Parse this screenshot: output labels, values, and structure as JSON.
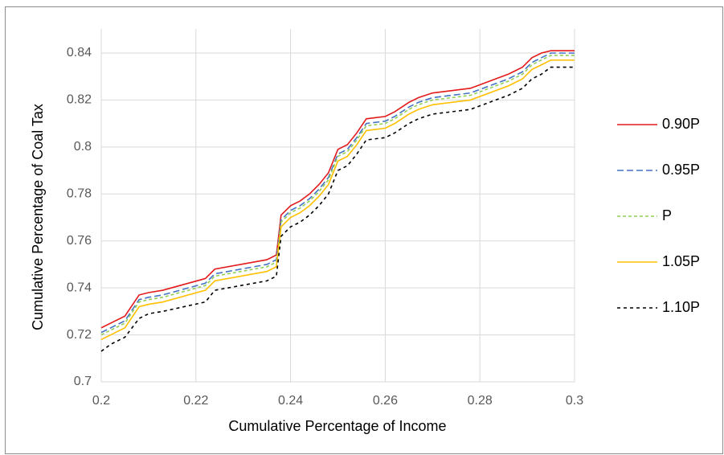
{
  "chart_data": {
    "type": "line",
    "x_label": "Cumulative Percentage of Income",
    "y_label": "Cumulative Percentage of Coal Tax",
    "x": [
      0.2,
      0.202,
      0.205,
      0.208,
      0.21,
      0.213,
      0.222,
      0.224,
      0.235,
      0.237,
      0.238,
      0.24,
      0.242,
      0.244,
      0.246,
      0.248,
      0.25,
      0.252,
      0.254,
      0.256,
      0.26,
      0.262,
      0.265,
      0.267,
      0.27,
      0.278,
      0.286,
      0.289,
      0.291,
      0.293,
      0.295,
      0.3
    ],
    "series": [
      {
        "name": "0.90P",
        "color": "#e31a1c",
        "dash": "none",
        "values": [
          0.723,
          0.725,
          0.728,
          0.737,
          0.738,
          0.739,
          0.744,
          0.748,
          0.752,
          0.754,
          0.771,
          0.775,
          0.777,
          0.78,
          0.784,
          0.789,
          0.799,
          0.801,
          0.806,
          0.812,
          0.813,
          0.815,
          0.819,
          0.821,
          0.823,
          0.825,
          0.831,
          0.834,
          0.838,
          0.84,
          0.841,
          0.841
        ]
      },
      {
        "name": "0.95P",
        "color": "#4472c4",
        "dash": "8,4",
        "values": [
          0.721,
          0.723,
          0.726,
          0.735,
          0.736,
          0.737,
          0.742,
          0.746,
          0.75,
          0.752,
          0.769,
          0.773,
          0.775,
          0.778,
          0.782,
          0.787,
          0.797,
          0.799,
          0.804,
          0.81,
          0.811,
          0.813,
          0.817,
          0.819,
          0.821,
          0.823,
          0.829,
          0.832,
          0.836,
          0.838,
          0.84,
          0.84
        ]
      },
      {
        "name": "P",
        "color": "#92d050",
        "dash": "4,3",
        "values": [
          0.72,
          0.722,
          0.725,
          0.734,
          0.735,
          0.736,
          0.741,
          0.745,
          0.749,
          0.751,
          0.768,
          0.772,
          0.774,
          0.777,
          0.781,
          0.786,
          0.796,
          0.798,
          0.803,
          0.809,
          0.81,
          0.812,
          0.816,
          0.818,
          0.82,
          0.822,
          0.828,
          0.831,
          0.835,
          0.837,
          0.839,
          0.839
        ]
      },
      {
        "name": "1.05P",
        "color": "#ffc000",
        "dash": "none",
        "values": [
          0.718,
          0.72,
          0.723,
          0.732,
          0.733,
          0.734,
          0.739,
          0.743,
          0.747,
          0.749,
          0.766,
          0.77,
          0.772,
          0.775,
          0.779,
          0.784,
          0.794,
          0.796,
          0.801,
          0.807,
          0.808,
          0.81,
          0.814,
          0.816,
          0.818,
          0.82,
          0.826,
          0.829,
          0.833,
          0.835,
          0.837,
          0.837
        ]
      },
      {
        "name": "1.10P",
        "color": "#000000",
        "dash": "4,4",
        "values": [
          0.713,
          0.716,
          0.719,
          0.727,
          0.729,
          0.73,
          0.734,
          0.739,
          0.743,
          0.745,
          0.762,
          0.766,
          0.768,
          0.771,
          0.775,
          0.78,
          0.79,
          0.792,
          0.797,
          0.803,
          0.804,
          0.806,
          0.81,
          0.812,
          0.814,
          0.816,
          0.822,
          0.825,
          0.829,
          0.831,
          0.834,
          0.834
        ]
      }
    ],
    "xlim": [
      0.2,
      0.3
    ],
    "xticks": [
      0.2,
      0.22,
      0.24,
      0.26,
      0.28,
      0.3
    ],
    "ylim": [
      0.7,
      0.84
    ],
    "yticks": [
      0.7,
      0.72,
      0.74,
      0.76,
      0.78,
      0.8,
      0.82,
      0.84
    ],
    "grid": true,
    "legend": "right"
  }
}
